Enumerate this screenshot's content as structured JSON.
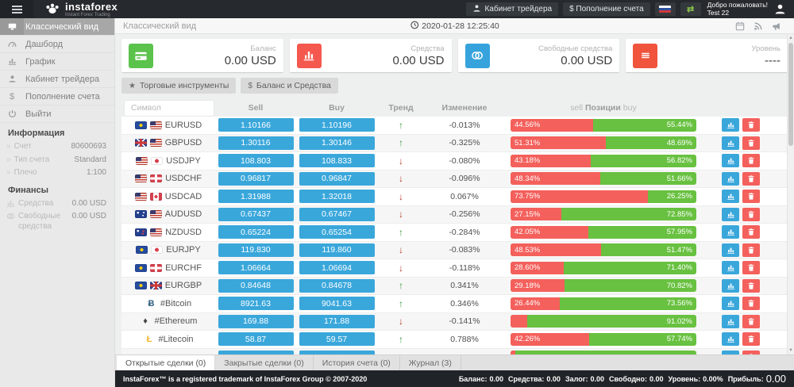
{
  "topbar": {
    "brand": "instaforex",
    "brand_sub": "Instant Forex Trading",
    "trader_cabinet": "Кабинет трейдера",
    "deposit": "$ Пополнение счета",
    "welcome_line1": "Добро пожаловать!",
    "welcome_line2": "Test 22"
  },
  "sidebar": {
    "items": [
      {
        "label": "Классический вид",
        "icon": "desktop-icon",
        "active": true
      },
      {
        "label": "Дашборд",
        "icon": "dashboard-icon",
        "active": false
      },
      {
        "label": "График",
        "icon": "chart-icon",
        "active": false
      },
      {
        "label": "Кабинет трейдера",
        "icon": "user-icon",
        "active": false
      },
      {
        "label": "Пополнение счета",
        "icon": "dollar-icon",
        "active": false
      },
      {
        "label": "Выйти",
        "icon": "power-icon",
        "active": false
      }
    ],
    "info_title": "Информация",
    "info_rows": [
      {
        "label": "Счет",
        "value": "80600693"
      },
      {
        "label": "Тип счета",
        "value": "Standard"
      },
      {
        "label": "Плечо",
        "value": "1:100"
      }
    ],
    "finance_title": "Финансы",
    "finance_rows": [
      {
        "label": "Средства",
        "value": "0.00 USD",
        "icon": "chart-icon"
      },
      {
        "label": "Свободные средства",
        "value": "0.00 USD",
        "icon": "cards-icon"
      }
    ]
  },
  "header": {
    "title": "Классический вид",
    "datetime": "2020-01-28 12:25:40"
  },
  "cards": [
    {
      "label": "Баланс",
      "value": "0.00 USD",
      "icon": "credit-card-icon",
      "color": "#5bc24c"
    },
    {
      "label": "Средства",
      "value": "0.00 USD",
      "icon": "bar-chart-icon",
      "color": "#f4584f"
    },
    {
      "label": "Свободные средства",
      "value": "0.00 USD",
      "icon": "coins-icon",
      "color": "#36a3dc"
    },
    {
      "label": "Уровень",
      "value": "----",
      "icon": "menu-icon",
      "color": "#f0543c"
    }
  ],
  "toolbar": {
    "instruments": "Торговые инструменты",
    "balance": "Баланс и Средства"
  },
  "table": {
    "filter_placeholder": "Символ",
    "headers": {
      "sell": "Sell",
      "buy": "Buy",
      "trend": "Тренд",
      "change": "Изменение",
      "positions_left": "sell",
      "positions_mid": "Позиции",
      "positions_right": "buy"
    },
    "rows": [
      {
        "symbol": "EURUSD",
        "flags": [
          "eu",
          "us"
        ],
        "sell": "1.10166",
        "buy": "1.10196",
        "trend": "up",
        "change": "-0.013%",
        "sell_pct": 44.56,
        "buy_pct": 55.44,
        "sell_label": "44.56%",
        "buy_label": "55.44%"
      },
      {
        "symbol": "GBPUSD",
        "flags": [
          "gb",
          "us"
        ],
        "sell": "1.30116",
        "buy": "1.30146",
        "trend": "up",
        "change": "-0.325%",
        "sell_pct": 51.31,
        "buy_pct": 48.69,
        "sell_label": "51.31%",
        "buy_label": "48.69%"
      },
      {
        "symbol": "USDJPY",
        "flags": [
          "us",
          "jp"
        ],
        "sell": "108.803",
        "buy": "108.833",
        "trend": "down",
        "change": "-0.080%",
        "sell_pct": 43.18,
        "buy_pct": 56.82,
        "sell_label": "43.18%",
        "buy_label": "56.82%"
      },
      {
        "symbol": "USDCHF",
        "flags": [
          "us",
          "ch"
        ],
        "sell": "0.96817",
        "buy": "0.96847",
        "trend": "down",
        "change": "-0.096%",
        "sell_pct": 48.34,
        "buy_pct": 51.66,
        "sell_label": "48.34%",
        "buy_label": "51.66%"
      },
      {
        "symbol": "USDCAD",
        "flags": [
          "us",
          "ca"
        ],
        "sell": "1.31988",
        "buy": "1.32018",
        "trend": "down",
        "change": "0.067%",
        "sell_pct": 73.75,
        "buy_pct": 26.25,
        "sell_label": "73.75%",
        "buy_label": "26.25%"
      },
      {
        "symbol": "AUDUSD",
        "flags": [
          "au",
          "us"
        ],
        "sell": "0.67437",
        "buy": "0.67467",
        "trend": "down",
        "change": "-0.256%",
        "sell_pct": 27.15,
        "buy_pct": 72.85,
        "sell_label": "27.15%",
        "buy_label": "72.85%"
      },
      {
        "symbol": "NZDUSD",
        "flags": [
          "nz",
          "us"
        ],
        "sell": "0.65224",
        "buy": "0.65254",
        "trend": "up",
        "change": "-0.284%",
        "sell_pct": 42.05,
        "buy_pct": 57.95,
        "sell_label": "42.05%",
        "buy_label": "57.95%"
      },
      {
        "symbol": "EURJPY",
        "flags": [
          "eu",
          "jp"
        ],
        "sell": "119.830",
        "buy": "119.860",
        "trend": "down",
        "change": "-0.083%",
        "sell_pct": 48.53,
        "buy_pct": 51.47,
        "sell_label": "48.53%",
        "buy_label": "51.47%"
      },
      {
        "symbol": "EURCHF",
        "flags": [
          "eu",
          "ch"
        ],
        "sell": "1.06664",
        "buy": "1.06694",
        "trend": "down",
        "change": "-0.118%",
        "sell_pct": 28.6,
        "buy_pct": 71.4,
        "sell_label": "28.60%",
        "buy_label": "71.40%"
      },
      {
        "symbol": "EURGBP",
        "flags": [
          "eu",
          "gb"
        ],
        "sell": "0.84648",
        "buy": "0.84678",
        "trend": "up",
        "change": "0.341%",
        "sell_pct": 29.18,
        "buy_pct": 70.82,
        "sell_label": "29.18%",
        "buy_label": "70.82%"
      },
      {
        "symbol": "#Bitcoin",
        "crypto": {
          "glyph": "Ƀ",
          "color": "#2f5f7e"
        },
        "sell": "8921.63",
        "buy": "9041.63",
        "trend": "up",
        "change": "0.346%",
        "sell_pct": 26.44,
        "buy_pct": 73.56,
        "sell_label": "26.44%",
        "buy_label": "73.56%"
      },
      {
        "symbol": "#Ethereum",
        "crypto": {
          "glyph": "♦",
          "color": "#454545"
        },
        "sell": "169.88",
        "buy": "171.88",
        "trend": "down",
        "change": "-0.141%",
        "sell_pct": 8.98,
        "buy_pct": 91.02,
        "sell_label": "",
        "buy_label": "91.02%"
      },
      {
        "symbol": "#Litecoin",
        "crypto": {
          "glyph": "Ł",
          "color": "#f2b32a"
        },
        "sell": "58.87",
        "buy": "59.57",
        "trend": "up",
        "change": "0.788%",
        "sell_pct": 42.26,
        "buy_pct": 57.74,
        "sell_label": "42.26%",
        "buy_label": "57.74%"
      },
      {
        "symbol": "",
        "crypto": {
          "glyph": "◆",
          "color": "#3aa7db"
        },
        "sell": "",
        "buy": "",
        "trend": "up",
        "change": "",
        "sell_pct": 2.5,
        "buy_pct": 97.5,
        "sell_label": "",
        "buy_label": ""
      }
    ]
  },
  "tabs": [
    {
      "label": "Открытые сделки (0)",
      "active": true
    },
    {
      "label": "Закрытые сделки (0)",
      "active": false
    },
    {
      "label": "История счета (0)",
      "active": false
    },
    {
      "label": "Журнал (3)",
      "active": false
    }
  ],
  "footer": {
    "copyright": "InstaForex™ is a registered trademark of InstaForex Group © 2007-2020",
    "status": [
      {
        "label": "Баланс:",
        "value": "0.00"
      },
      {
        "label": "Средства:",
        "value": "0.00"
      },
      {
        "label": "Залог:",
        "value": "0.00"
      },
      {
        "label": "Свободно:",
        "value": "0.00"
      },
      {
        "label": "Уровень:",
        "value": "0.00%"
      },
      {
        "label": "Прибыль:",
        "value": "0.00",
        "big": true
      }
    ]
  }
}
